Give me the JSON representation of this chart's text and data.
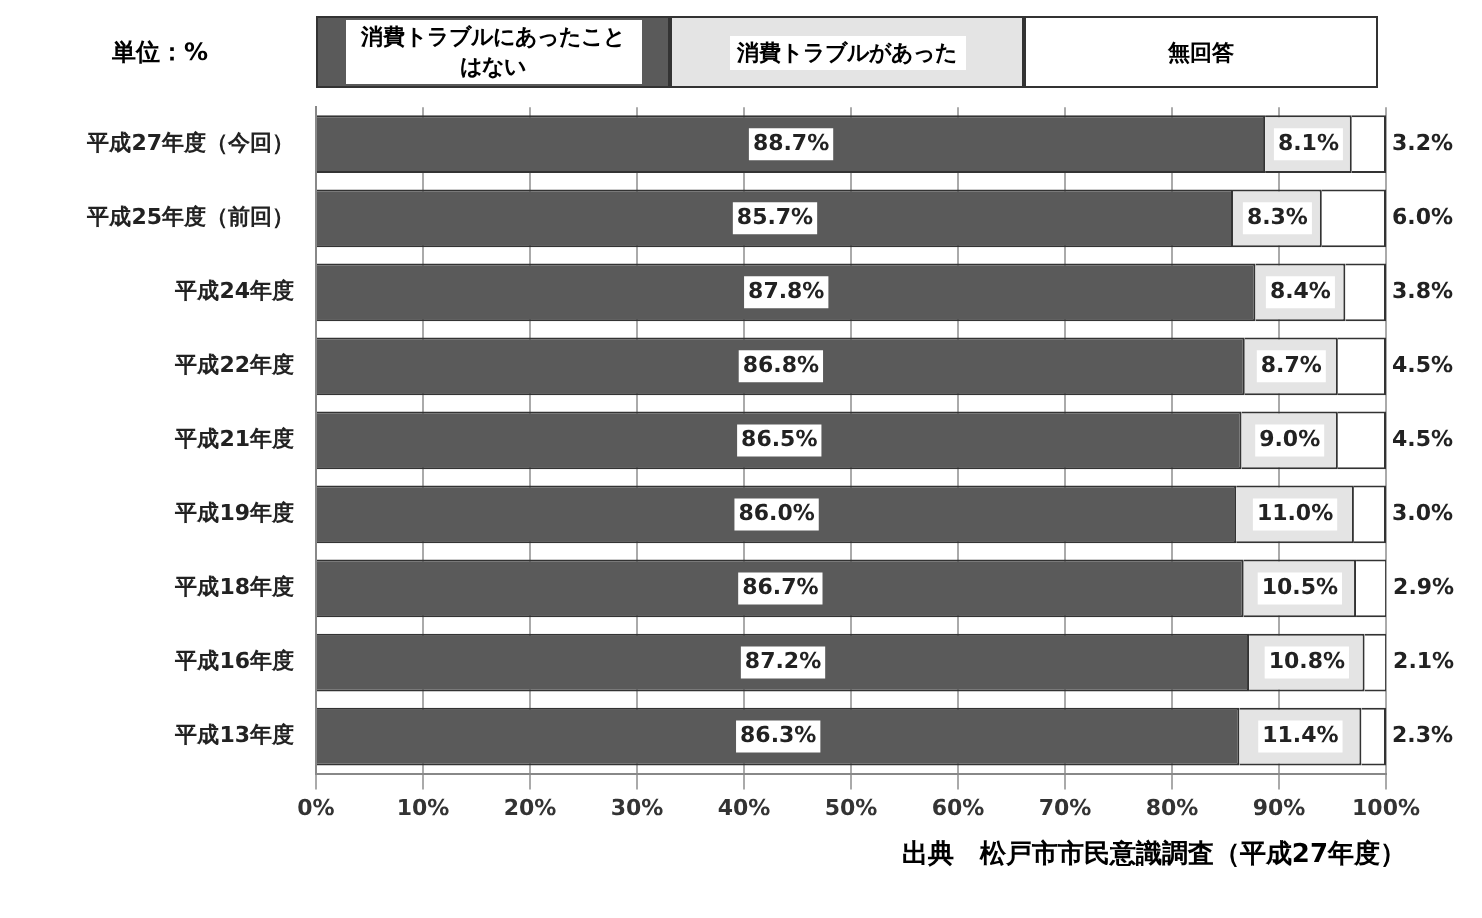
{
  "chart_data": {
    "type": "bar",
    "orientation": "horizontal",
    "stacked": true,
    "categories": [
      "平成27年度（今回）",
      "平成25年度（前回）",
      "平成24年度",
      "平成22年度",
      "平成21年度",
      "平成19年度",
      "平成18年度",
      "平成16年度",
      "平成13年度"
    ],
    "series": [
      {
        "name": "消費トラブルにあったことはない",
        "color": "#5a5a5a",
        "values": [
          88.7,
          85.7,
          87.8,
          86.8,
          86.5,
          86.0,
          86.7,
          87.2,
          86.3
        ],
        "value_labels": [
          "88.7%",
          "85.7%",
          "87.8%",
          "86.8%",
          "86.5%",
          "86.0%",
          "86.7%",
          "87.2%",
          "86.3%"
        ]
      },
      {
        "name": "消費トラブルがあった",
        "color": "#e4e4e4",
        "values": [
          8.1,
          8.3,
          8.4,
          8.7,
          9.0,
          11.0,
          10.5,
          10.8,
          11.4
        ],
        "value_labels": [
          "8.1%",
          "8.3%",
          "8.4%",
          "8.7%",
          "9.0%",
          "11.0%",
          "10.5%",
          "10.8%",
          "11.4%"
        ]
      },
      {
        "name": "無回答",
        "color": "#ffffff",
        "values": [
          3.2,
          6.0,
          3.8,
          4.5,
          4.5,
          3.0,
          2.9,
          2.1,
          2.3
        ],
        "value_labels": [
          "3.2%",
          "6.0%",
          "3.8%",
          "4.5%",
          "4.5%",
          "3.0%",
          "2.9%",
          "2.1%",
          "2.3%"
        ]
      }
    ],
    "xlim": [
      0,
      100
    ],
    "xticks": [
      {
        "value": 0,
        "label": "0%"
      },
      {
        "value": 10,
        "label": "10%"
      },
      {
        "value": 20,
        "label": "20%"
      },
      {
        "value": 30,
        "label": "30%"
      },
      {
        "value": 40,
        "label": "40%"
      },
      {
        "value": 50,
        "label": "50%"
      },
      {
        "value": 60,
        "label": "60%"
      },
      {
        "value": 70,
        "label": "70%"
      },
      {
        "value": 80,
        "label": "80%"
      },
      {
        "value": 90,
        "label": "90%"
      },
      {
        "value": 100,
        "label": "100%"
      }
    ],
    "grid": "x",
    "legend": "top",
    "annotations": [
      "単位：%",
      "出典　松戸市市民意識調査（平成27年度）"
    ]
  }
}
